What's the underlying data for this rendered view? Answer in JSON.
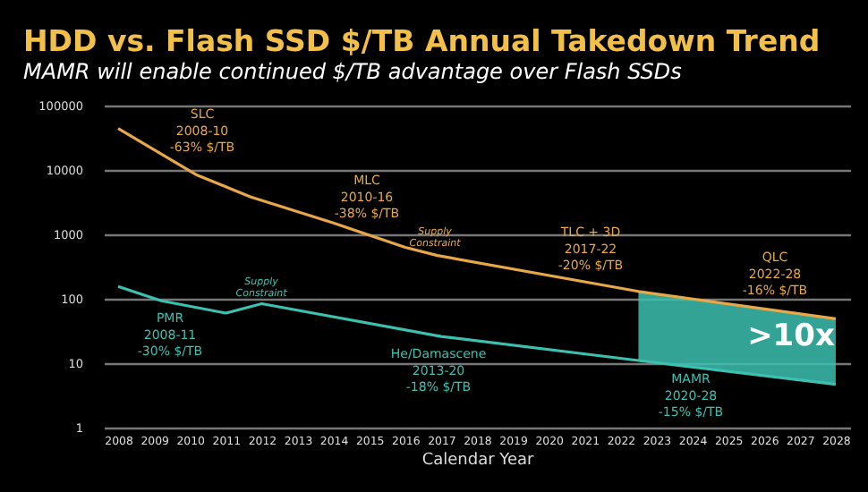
{
  "chart_data": {
    "type": "line",
    "title": "HDD vs. Flash SSD $/TB Annual Takedown Trend",
    "subtitle": "MAMR will enable continued $/TB advantage over Flash SSDs",
    "xlabel": "Calendar Year",
    "log": "y",
    "grid": "y",
    "xlim": [
      2007.6,
      2028.4
    ],
    "xticks": [
      2008,
      2009,
      2010,
      2011,
      2012,
      2013,
      2014,
      2015,
      2016,
      2017,
      2018,
      2019,
      2020,
      2021,
      2022,
      2023,
      2024,
      2025,
      2026,
      2027,
      2028
    ],
    "ylim": [
      1,
      100000
    ],
    "yticks": [
      1,
      10,
      100,
      1000,
      10000,
      100000
    ],
    "series": [
      {
        "color": "#e8a848",
        "x": [
          2008,
          2010.2,
          2011.7,
          2014,
          2016,
          2016.9,
          2022.5,
          2028
        ],
        "values": [
          44000,
          8300,
          3800,
          1500,
          630,
          470,
          130,
          49
        ]
      },
      {
        "color": "#3cc0b0",
        "x": [
          2008,
          2009.2,
          2011,
          2012,
          2017,
          2022.5,
          2028
        ],
        "values": [
          155,
          93,
          60,
          84,
          26,
          11,
          4.7
        ],
        "lower": [
          null,
          null,
          null,
          null,
          null,
          11,
          4.7
        ],
        "upper": [
          null,
          null,
          null,
          null,
          null,
          130,
          49
        ]
      }
    ],
    "annotations": [
      "SLC\n2008-10\n-63% $/TB",
      "MLC\n2010-16\n-38% $/TB",
      "Supply\nConstraint",
      "TLC + 3D\n2017-22\n-20% $/TB",
      "QLC\n2022-28\n-16% $/TB",
      "Supply\nConstraint",
      "PMR\n2008-11\n-30% $/TB",
      "He/Damascene\n2013-20\n-18% $/TB",
      "MAMR\n2020-28\n-15% $/TB",
      ">10x"
    ]
  }
}
